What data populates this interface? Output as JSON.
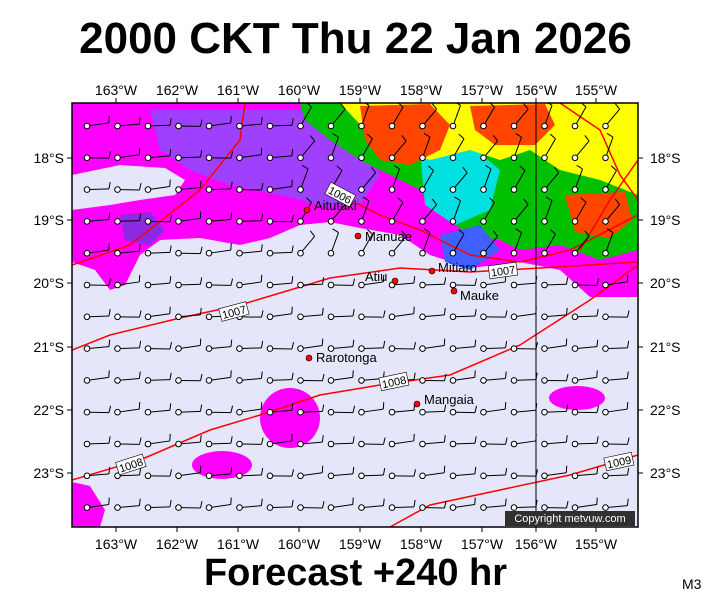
{
  "title": "2000 CKT Thu 22 Jan 2026",
  "subtitle": "Forecast +240 hr",
  "model_code": "M3",
  "copyright": "Copyright metvuw.com",
  "lon_labels": [
    "163°W",
    "162°W",
    "161°W",
    "160°W",
    "159°W",
    "158°W",
    "157°W",
    "156°W",
    "155°W"
  ],
  "lat_labels": [
    "18°S",
    "19°S",
    "20°S",
    "21°S",
    "22°S",
    "23°S"
  ],
  "places": [
    "Aitutaki",
    "Manuae",
    "Atiu",
    "Mitiaro",
    "Mauke",
    "Rarotonga",
    "Mangaia"
  ],
  "isobars": [
    "1006",
    "1007",
    "1007",
    "1008",
    "1008",
    "1009"
  ],
  "colors": {
    "land_gap": "#e6e6fa",
    "rain_light": "#ff00ff",
    "rain_heavy": "#ff4500",
    "isobar": "#ff0000",
    "island": "#ff0000"
  }
}
